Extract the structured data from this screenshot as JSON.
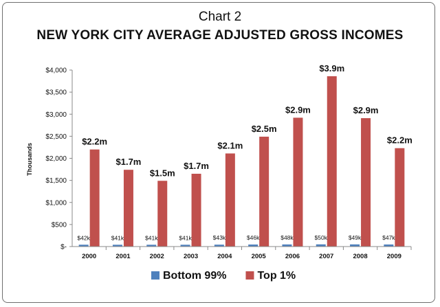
{
  "chart_data": {
    "type": "bar",
    "subtitle": "Chart 2",
    "title": "NEW YORK CITY AVERAGE ADJUSTED GROSS INCOMES",
    "ylabel": "Thousands",
    "xlabel": "",
    "ylim": [
      0,
      4000
    ],
    "yticks": [
      {
        "value": 0,
        "label": "$-"
      },
      {
        "value": 500,
        "label": "$500"
      },
      {
        "value": 1000,
        "label": "$1,000"
      },
      {
        "value": 1500,
        "label": "$1,500"
      },
      {
        "value": 2000,
        "label": "$2,000"
      },
      {
        "value": 2500,
        "label": "$2,500"
      },
      {
        "value": 3000,
        "label": "$3,000"
      },
      {
        "value": 3500,
        "label": "$3,500"
      },
      {
        "value": 4000,
        "label": "$4,000"
      }
    ],
    "categories": [
      "2000",
      "2001",
      "2002",
      "2003",
      "2004",
      "2005",
      "2006",
      "2007",
      "2008",
      "2009"
    ],
    "series": [
      {
        "name": "Bottom 99%",
        "color": "#4f81bd",
        "values": [
          42,
          41,
          41,
          41,
          43,
          46,
          48,
          50,
          49,
          47
        ],
        "labels": [
          "$42k",
          "$41k",
          "$41k",
          "$41k",
          "$43k",
          "$46k",
          "$48k",
          "$50k",
          "$49k",
          "$47k"
        ]
      },
      {
        "name": "Top 1%",
        "color": "#c0504d",
        "values": [
          2200,
          1740,
          1490,
          1650,
          2110,
          2490,
          2920,
          3860,
          2910,
          2230
        ],
        "labels": [
          "$2.2m",
          "$1.7m",
          "$1.5m",
          "$1.7m",
          "$2.1m",
          "$2.5m",
          "$2.9m",
          "$3.9m",
          "$2.9m",
          "$2.2m"
        ]
      }
    ],
    "legend_position": "bottom",
    "grid": false
  }
}
